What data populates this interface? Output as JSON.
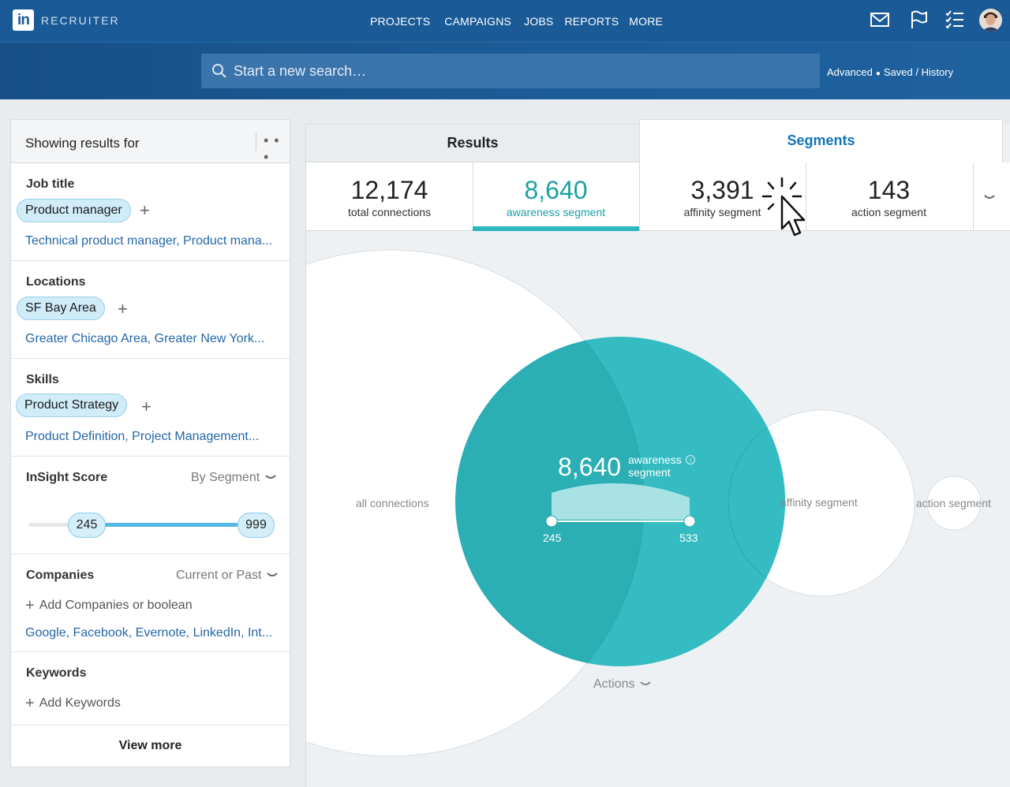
{
  "header": {
    "brand_logo": "in",
    "brand_name": "RECRUITER",
    "nav": [
      "PROJECTS",
      "CAMPAIGNS",
      "JOBS",
      "REPORTS",
      "MORE"
    ],
    "icons": [
      "mail-icon",
      "flag-icon",
      "tasks-icon",
      "avatar"
    ]
  },
  "search": {
    "placeholder": "Start a new search…",
    "advanced": "Advanced",
    "saved": "Saved",
    "separator": "/",
    "history": "History"
  },
  "filters": {
    "title": "Showing results for",
    "job_title": {
      "label": "Job title",
      "chip": "Product manager",
      "suggestions": "Technical product manager, Product mana..."
    },
    "locations": {
      "label": "Locations",
      "chip": "SF Bay Area",
      "suggestions": "Greater Chicago Area, Greater New York..."
    },
    "skills": {
      "label": "Skills",
      "chip": "Product Strategy",
      "suggestions": "Product Definition, Project Management..."
    },
    "insight": {
      "label": "InSight Score",
      "mode": "By Segment",
      "min": "245",
      "max": "999",
      "min_value": 245,
      "max_value": 999
    },
    "companies": {
      "label": "Companies",
      "mode": "Current or Past",
      "add": "Add Companies or boolean",
      "suggestions": "Google, Facebook, Evernote, LinkedIn, Int..."
    },
    "keywords": {
      "label": "Keywords",
      "add": "Add Keywords"
    },
    "view_more": "View more"
  },
  "tabs": {
    "results": "Results",
    "segments": "Segments"
  },
  "stats": [
    {
      "value": "12,174",
      "label": "total connections"
    },
    {
      "value": "8,640",
      "label": "awareness segment"
    },
    {
      "value": "3,391",
      "label": "affinity segment"
    },
    {
      "value": "143",
      "label": "action segment"
    }
  ],
  "venn": {
    "all_label": "all connections",
    "affinity_label": "affinity segment",
    "action_label": "action segment",
    "awareness_value": "8,640",
    "awareness_label_1": "awareness",
    "awareness_label_2": "segment",
    "range_low": "245",
    "range_high": "533",
    "actions": "Actions"
  },
  "colors": {
    "header": "#1a5a96",
    "teal": "#2bb8bf",
    "link": "#2467a8",
    "chip": "#d0ecf9"
  }
}
